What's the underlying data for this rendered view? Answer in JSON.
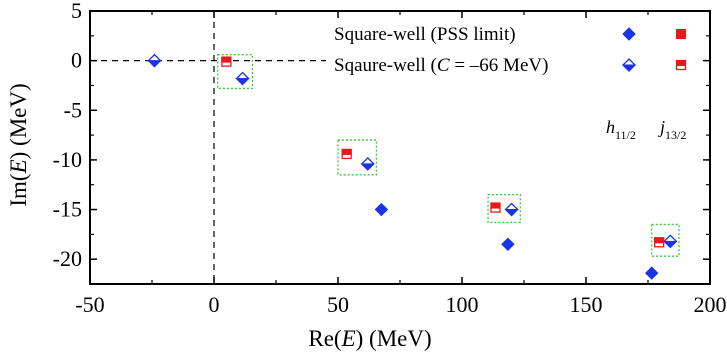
{
  "chart_data": {
    "type": "scatter",
    "xlabel": "Re(E) (MeV)",
    "ylabel": "Im(E) (MeV)",
    "xlim": [
      -50,
      200
    ],
    "ylim": [
      -22.5,
      5
    ],
    "x_ticks": [
      -50,
      0,
      50,
      100,
      150,
      200
    ],
    "y_ticks": [
      5,
      0,
      -5,
      -10,
      -15,
      -20
    ],
    "x_tick_labels": [
      "-50",
      "0",
      "50",
      "100",
      "150",
      "200"
    ],
    "y_tick_labels": [
      "5",
      "0",
      "-5",
      "-10",
      "-15",
      "-20"
    ],
    "grid": false,
    "legend_position": "top-right",
    "legend": [
      {
        "label": "Square-well (PSS limit)"
      },
      {
        "label_prefix": "Sqaure-well (",
        "label_italic": "C",
        "label_suffix": " = –66 MeV)"
      }
    ],
    "wave_labels": [
      {
        "main": "h",
        "sub": "11/2"
      },
      {
        "main": "j",
        "sub": "13/2"
      }
    ],
    "colors": {
      "h11_2": "#1a33e6",
      "j13_2": "#e61a1a",
      "box": "#33cc33",
      "axis": "#000000"
    },
    "series": [
      {
        "name": "h11/2 square-well (PSS limit)",
        "marker": "diamond-filled",
        "points": [
          [
            67.5,
            -15.0
          ],
          [
            118.5,
            -18.5
          ],
          [
            176.5,
            -21.4
          ]
        ]
      },
      {
        "name": "h11/2 square-well (C = -66 MeV)",
        "marker": "diamond-half",
        "points": [
          [
            -24.0,
            0.0
          ],
          [
            11.5,
            -1.8
          ],
          [
            62.0,
            -10.4
          ],
          [
            120.0,
            -15.0
          ],
          [
            184.0,
            -18.2
          ]
        ]
      },
      {
        "name": "j13/2 square-well (C = -66 MeV)",
        "marker": "square-half",
        "points": [
          [
            5.0,
            -0.1
          ],
          [
            53.5,
            -9.4
          ],
          [
            113.5,
            -14.8
          ],
          [
            179.5,
            -18.3
          ]
        ]
      }
    ],
    "boxes": [
      {
        "x": [
          1.5,
          15.5
        ],
        "y": [
          -2.8,
          0.6
        ]
      },
      {
        "x": [
          50.0,
          65.5
        ],
        "y": [
          -11.5,
          -8.0
        ]
      },
      {
        "x": [
          110.5,
          123.5
        ],
        "y": [
          -16.3,
          -13.5
        ]
      },
      {
        "x": [
          176.5,
          187.5
        ],
        "y": [
          -19.7,
          -16.5
        ]
      }
    ],
    "reference_lines": {
      "x": 0,
      "y": 0,
      "style": "dashed"
    }
  }
}
